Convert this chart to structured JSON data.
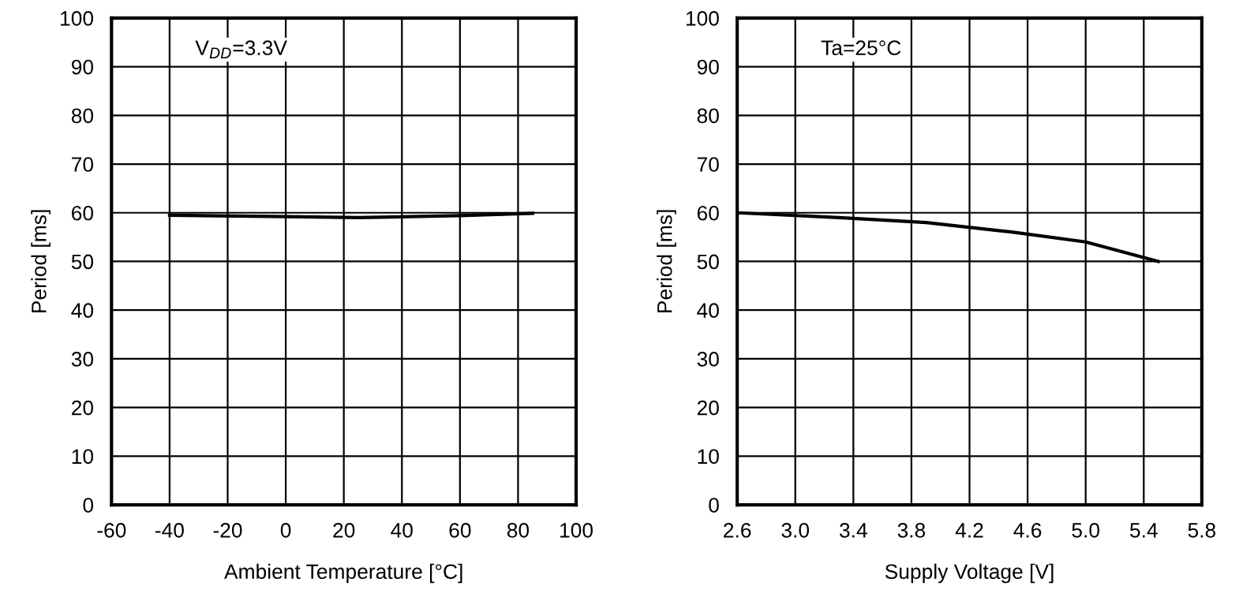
{
  "chart_data": [
    {
      "type": "line",
      "xlabel": "Ambient Temperature [°C]",
      "ylabel": "Period [ms]",
      "annotations": [
        "V$_{DD}$=3.3V"
      ],
      "x": [
        -40,
        0,
        25,
        60,
        85
      ],
      "series": [
        {
          "color": "#000000",
          "values": [
            59.5,
            59.2,
            59,
            59.4,
            59.9
          ]
        }
      ],
      "xlim": [
        -60,
        100
      ],
      "xticks": [
        -60,
        -40,
        -20,
        0,
        20,
        40,
        60,
        80,
        100
      ],
      "ylim": [
        0,
        100
      ],
      "yticks": [
        0,
        10,
        20,
        30,
        40,
        50,
        60,
        70,
        80,
        90,
        100
      ],
      "grid": true
    },
    {
      "type": "line",
      "xlabel": "Supply Voltage [V]",
      "ylabel": "Period [ms]",
      "annotations": [
        "Ta=25°C"
      ],
      "x": [
        2.6,
        3.3,
        3.9,
        4.5,
        5.0,
        5.5
      ],
      "series": [
        {
          "color": "#000000",
          "values": [
            60,
            59,
            58,
            56,
            54,
            50
          ]
        }
      ],
      "xlim": [
        2.6,
        5.8
      ],
      "xticks": [
        {
          "value": 2.6,
          "label": "2.6"
        },
        {
          "value": 3.0,
          "label": "3.0"
        },
        {
          "value": 3.4,
          "label": "3.4"
        },
        {
          "value": 3.8,
          "label": "3.8"
        },
        {
          "value": 4.2,
          "label": "4.2"
        },
        {
          "value": 4.6,
          "label": "4.6"
        },
        {
          "value": 5.0,
          "label": "5.0"
        },
        {
          "value": 5.4,
          "label": "5.4"
        },
        {
          "value": 5.8,
          "label": "5.8"
        }
      ],
      "ylim": [
        0,
        100
      ],
      "yticks": [
        0,
        10,
        20,
        30,
        40,
        50,
        60,
        70,
        80,
        90,
        100
      ],
      "grid": true
    }
  ]
}
